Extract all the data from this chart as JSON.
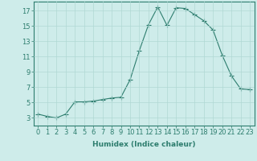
{
  "x": [
    0,
    1,
    2,
    3,
    4,
    5,
    6,
    7,
    8,
    9,
    10,
    11,
    12,
    13,
    14,
    15,
    16,
    17,
    18,
    19,
    20,
    21,
    22,
    23
  ],
  "y": [
    3.5,
    3.2,
    3.0,
    3.5,
    5.1,
    5.1,
    5.2,
    5.4,
    5.6,
    5.7,
    8.0,
    11.8,
    15.2,
    17.5,
    15.1,
    17.4,
    17.3,
    16.5,
    15.7,
    14.5,
    11.2,
    8.5,
    6.8,
    6.7
  ],
  "line_color": "#2d7d6e",
  "marker": "+",
  "marker_size": 4,
  "background_color": "#ceecea",
  "grid_color": "#b0d8d4",
  "xlabel": "Humidex (Indice chaleur)",
  "xlim": [
    -0.5,
    23.5
  ],
  "ylim": [
    2,
    18.2
  ],
  "yticks": [
    3,
    5,
    7,
    9,
    11,
    13,
    15,
    17
  ],
  "xticks": [
    0,
    1,
    2,
    3,
    4,
    5,
    6,
    7,
    8,
    9,
    10,
    11,
    12,
    13,
    14,
    15,
    16,
    17,
    18,
    19,
    20,
    21,
    22,
    23
  ],
  "xlabel_fontsize": 6.5,
  "tick_fontsize": 6,
  "line_color_hex": "#2d7d6e",
  "spine_color": "#2d7d6e"
}
